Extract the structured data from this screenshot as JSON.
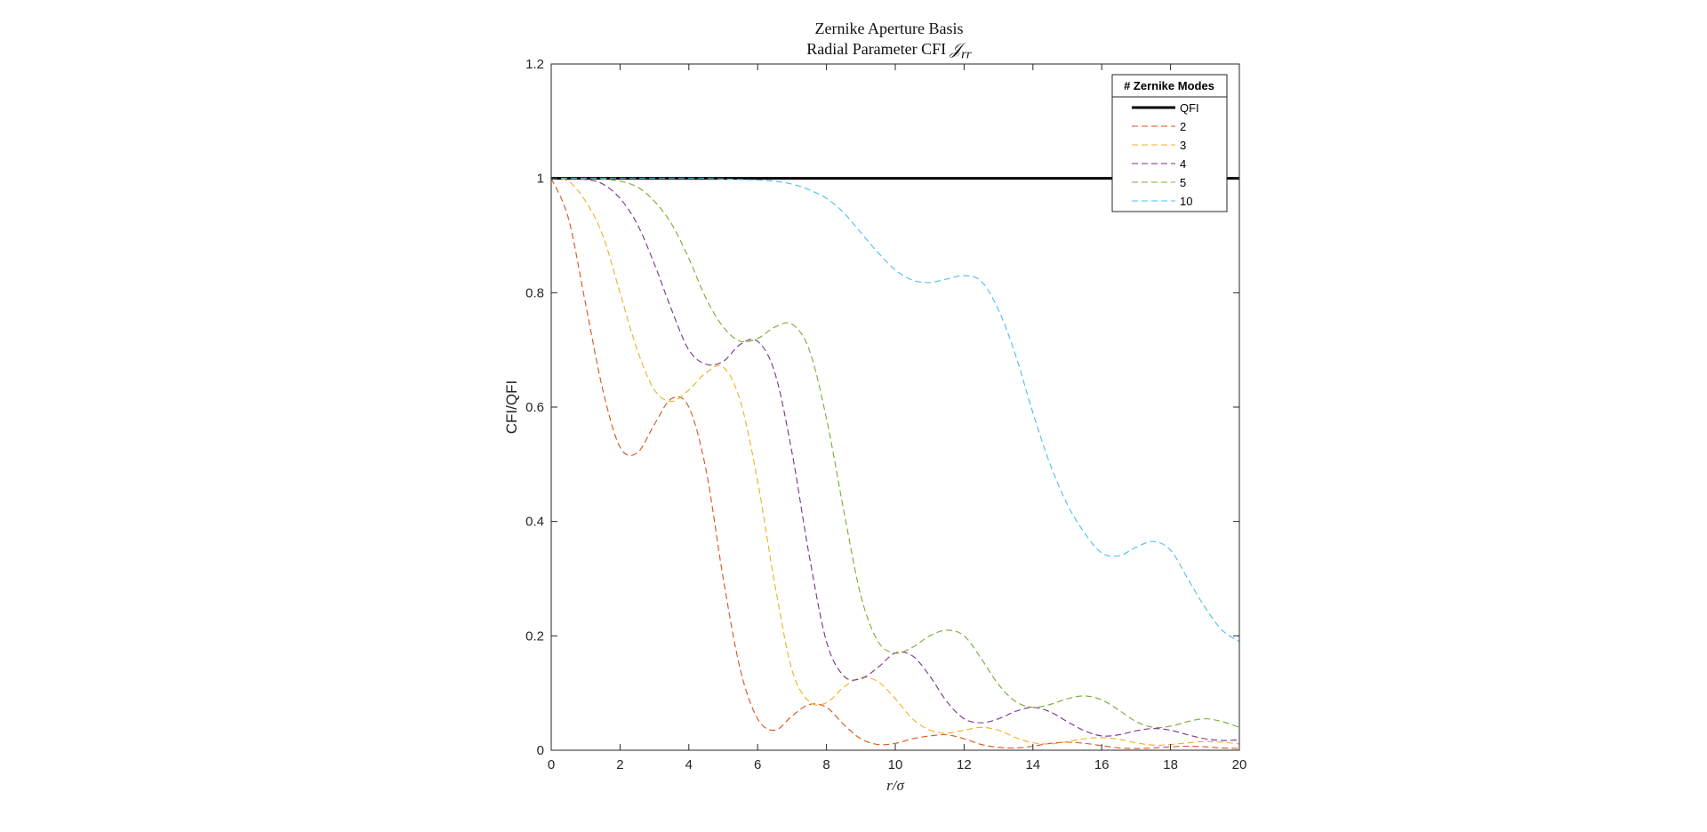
{
  "chart_data": {
    "type": "line",
    "title": "Zernike Aperture Basis",
    "subtitle_prefix": "Radial Parameter CFI ",
    "subtitle_symbol": "𝒥",
    "subtitle_subscript": "rr",
    "xlabel": "r/σ",
    "ylabel": "CFI/QFI",
    "xlim": [
      0,
      20
    ],
    "ylim": [
      0,
      1.2
    ],
    "xticks": [
      0,
      2,
      4,
      6,
      8,
      10,
      12,
      14,
      16,
      18,
      20
    ],
    "yticks": [
      0,
      0.2,
      0.4,
      0.6,
      0.8,
      1,
      1.2
    ],
    "grid": false,
    "legend": {
      "title": "# Zernike Modes",
      "position": "top-right"
    },
    "x": [
      0,
      0.5,
      1,
      1.5,
      2,
      2.5,
      3,
      3.5,
      4,
      4.5,
      5,
      5.5,
      6,
      6.5,
      7,
      7.5,
      8,
      8.5,
      9,
      9.5,
      10,
      10.5,
      11,
      11.5,
      12,
      12.5,
      13,
      13.5,
      14,
      14.5,
      15,
      15.5,
      16,
      16.5,
      17,
      17.5,
      18,
      18.5,
      19,
      19.5,
      20
    ],
    "series": [
      {
        "name": "QFI",
        "color": "#000000",
        "style": "solid",
        "values": [
          1,
          1,
          1,
          1,
          1,
          1,
          1,
          1,
          1,
          1,
          1,
          1,
          1,
          1,
          1,
          1,
          1,
          1,
          1,
          1,
          1,
          1,
          1,
          1,
          1,
          1,
          1,
          1,
          1,
          1,
          1,
          1,
          1,
          1,
          1,
          1,
          1,
          1,
          1,
          1,
          1
        ]
      },
      {
        "name": "2",
        "color": "#D95319",
        "style": "dashed",
        "values": [
          1.0,
          0.93,
          0.78,
          0.63,
          0.53,
          0.52,
          0.57,
          0.615,
          0.6,
          0.49,
          0.3,
          0.14,
          0.055,
          0.035,
          0.06,
          0.08,
          0.075,
          0.045,
          0.02,
          0.01,
          0.012,
          0.02,
          0.025,
          0.027,
          0.02,
          0.01,
          0.005,
          0.004,
          0.007,
          0.012,
          0.014,
          0.012,
          0.008,
          0.004,
          0.003,
          0.004,
          0.006,
          0.007,
          0.006,
          0.004,
          0.003
        ]
      },
      {
        "name": "3",
        "color": "#EDB120",
        "style": "dashed",
        "values": [
          1.0,
          0.995,
          0.96,
          0.9,
          0.8,
          0.7,
          0.63,
          0.61,
          0.63,
          0.66,
          0.67,
          0.61,
          0.47,
          0.29,
          0.14,
          0.085,
          0.083,
          0.11,
          0.127,
          0.12,
          0.09,
          0.055,
          0.035,
          0.03,
          0.035,
          0.04,
          0.035,
          0.022,
          0.013,
          0.011,
          0.015,
          0.02,
          0.022,
          0.019,
          0.013,
          0.009,
          0.01,
          0.013,
          0.015,
          0.014,
          0.011
        ]
      },
      {
        "name": "4",
        "color": "#7E2F8E",
        "style": "dashed",
        "values": [
          1.0,
          1.0,
          0.998,
          0.99,
          0.965,
          0.92,
          0.85,
          0.77,
          0.7,
          0.675,
          0.68,
          0.71,
          0.715,
          0.66,
          0.52,
          0.34,
          0.19,
          0.13,
          0.125,
          0.145,
          0.17,
          0.165,
          0.13,
          0.085,
          0.055,
          0.048,
          0.055,
          0.068,
          0.075,
          0.067,
          0.05,
          0.034,
          0.025,
          0.027,
          0.034,
          0.038,
          0.035,
          0.027,
          0.02,
          0.017,
          0.018
        ]
      },
      {
        "name": "5",
        "color": "#77AC30",
        "style": "dashed",
        "values": [
          1.0,
          1.0,
          1.0,
          0.999,
          0.995,
          0.985,
          0.96,
          0.92,
          0.86,
          0.79,
          0.74,
          0.715,
          0.72,
          0.74,
          0.745,
          0.7,
          0.58,
          0.42,
          0.27,
          0.19,
          0.17,
          0.18,
          0.2,
          0.21,
          0.2,
          0.16,
          0.115,
          0.085,
          0.075,
          0.08,
          0.09,
          0.095,
          0.088,
          0.07,
          0.05,
          0.04,
          0.042,
          0.05,
          0.055,
          0.05,
          0.04
        ]
      },
      {
        "name": "10",
        "color": "#4DBEEE",
        "style": "dashed",
        "values": [
          1.0,
          1.0,
          1.0,
          1.0,
          1.0,
          1.0,
          1.0,
          1.0,
          1.0,
          1.0,
          0.999,
          0.998,
          0.997,
          0.995,
          0.99,
          0.98,
          0.965,
          0.94,
          0.905,
          0.87,
          0.84,
          0.822,
          0.818,
          0.824,
          0.83,
          0.82,
          0.77,
          0.69,
          0.59,
          0.5,
          0.43,
          0.38,
          0.345,
          0.34,
          0.355,
          0.365,
          0.35,
          0.3,
          0.25,
          0.21,
          0.19
        ]
      }
    ]
  }
}
